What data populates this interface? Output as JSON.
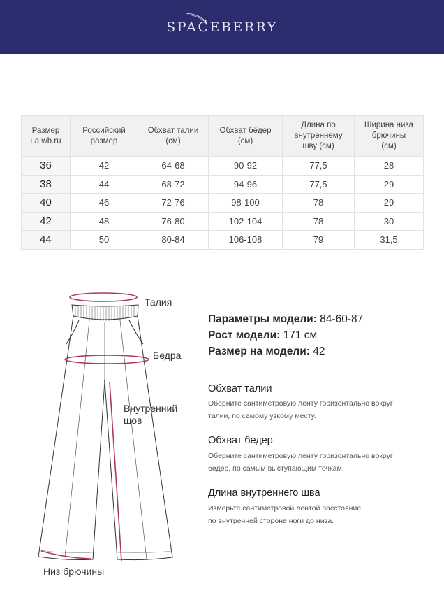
{
  "brand": {
    "logo_text": "SPACEBERRY",
    "bg_color": "#2c2d6e"
  },
  "table": {
    "headers": [
      "Размер на wb.ru",
      "Российский размер",
      "Обхват талии (см)",
      "Обхват бёдер (см)",
      "Длина по внутреннему шву (см)",
      "Ширина низа брючины (см)"
    ],
    "header_lines": [
      [
        "Размер",
        "на wb.ru"
      ],
      [
        "Российский",
        "размер"
      ],
      [
        "Обхват талии",
        "(см)"
      ],
      [
        "Обхват бёдер",
        "(см)"
      ],
      [
        "Длина по",
        "внутреннему",
        "шву (см)"
      ],
      [
        "Ширина низа",
        "брючины",
        "(см)"
      ]
    ],
    "rows": [
      [
        "36",
        "42",
        "64-68",
        "90-92",
        "77,5",
        "28"
      ],
      [
        "38",
        "44",
        "68-72",
        "94-96",
        "77,5",
        "29"
      ],
      [
        "40",
        "46",
        "72-76",
        "98-100",
        "78",
        "29"
      ],
      [
        "42",
        "48",
        "76-80",
        "102-104",
        "78",
        "30"
      ],
      [
        "44",
        "50",
        "80-84",
        "106-108",
        "79",
        "31,5"
      ]
    ]
  },
  "diagram": {
    "labels": {
      "waist": "Талия",
      "hips": "Бедра",
      "inseam_1": "Внутренний",
      "inseam_2": "шов",
      "hem": "Низ брючины"
    },
    "accent_color": "#b0365e"
  },
  "model": {
    "params_label": "Параметры модели:",
    "params_value": "84-60-87",
    "height_label": "Рост модели:",
    "height_value": "171 см",
    "size_label": "Размер на модели:",
    "size_value": "42"
  },
  "instructions": [
    {
      "title": "Обхват талии",
      "lines": [
        "Оберните сантиметровую ленту горизонтально вокруг",
        "талии, по самому узкому месту."
      ]
    },
    {
      "title": "Обхват бедер",
      "lines": [
        "Оберните сантиметровую ленту горизонтально вокруг",
        "бедер, по самым выступающим точкам."
      ]
    },
    {
      "title": "Длина внутреннего шва",
      "lines": [
        "Измерьте сантиметровой лентой расстояние",
        "по внутренней стороне ноги до низа."
      ]
    }
  ]
}
